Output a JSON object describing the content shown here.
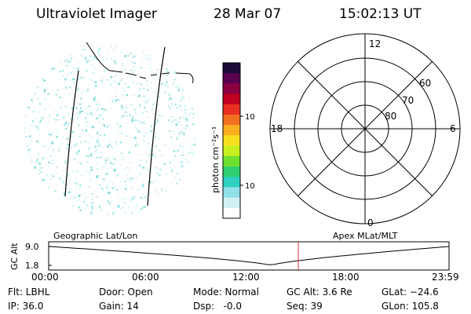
{
  "header": {
    "instrument": "Ultraviolet Imager",
    "date": "28 Mar 07",
    "time": "15:02:13 UT"
  },
  "colorbar": {
    "label": "photon cm⁻²s⁻¹",
    "ticks": [
      "100",
      "10"
    ],
    "colors": [
      "#1a0a3a",
      "#5a0050",
      "#8a0040",
      "#c00020",
      "#e83020",
      "#f07020",
      "#f8b020",
      "#f8e020",
      "#c8f020",
      "#70e030",
      "#30d070",
      "#30d0c0",
      "#90e0e8",
      "#d0f0f4",
      "#ffffff"
    ]
  },
  "polar_plot": {
    "mlt_labels": {
      "top": "12",
      "left": "18",
      "right": "6",
      "bottom": "0"
    },
    "lat_labels": [
      "60",
      "70",
      "80"
    ]
  },
  "altitude_plot": {
    "left_title": "Geographic Lat/Lon",
    "right_title": "Apex MLat/MLT",
    "ylabel": "GC Alt",
    "yticks": [
      "9.0",
      "1.8"
    ],
    "xticks": [
      "00:00",
      "06:00",
      "12:00",
      "18:00",
      "23:59"
    ],
    "marker_color": "#e03030"
  },
  "footer": {
    "flt": "Flt: LBHL",
    "ip": "IP: 36.0",
    "door": "Door: Open",
    "gain": "Gain: 14",
    "mode": "Mode: Normal",
    "dsp": "Dsp:   -0.0",
    "gc_alt": "GC Alt: 3.6 Re",
    "seq": "Seq: 39",
    "glat": "GLat: −24.6",
    "glon": "GLon: 105.8"
  }
}
